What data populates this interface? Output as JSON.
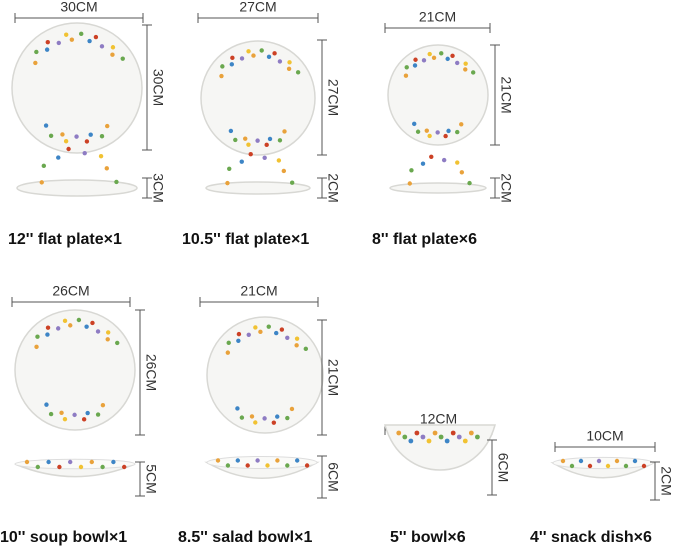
{
  "items": [
    {
      "name": "12'' flat plate×1",
      "width": "30CM",
      "length": "30CM",
      "height": "3CM"
    },
    {
      "name": "10.5'' flat plate×1",
      "width": "27CM",
      "length": "27CM",
      "height": "2CM"
    },
    {
      "name": "8'' flat plate×6",
      "width": "21CM",
      "length": "21CM",
      "height": "2CM"
    },
    {
      "name": "10'' soup bowl×1",
      "width": "26CM",
      "length": "26CM",
      "height": "5CM"
    },
    {
      "name": "8.5'' salad bowl×1",
      "width": "21CM",
      "length": "21CM",
      "height": "6CM"
    },
    {
      "name": "5'' bowl×6",
      "width": "12CM",
      "height": "6CM"
    },
    {
      "name": "4'' snack dish×6",
      "width": "10CM",
      "height": "2CM"
    }
  ]
}
